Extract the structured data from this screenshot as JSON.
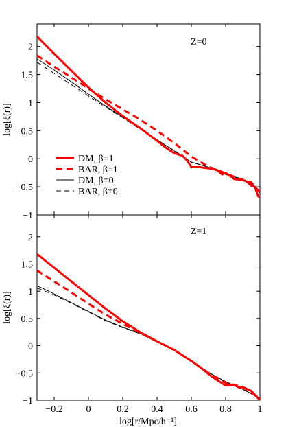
{
  "chart_data": [
    {
      "type": "line",
      "panel_label": "Z=0",
      "xlabel": "",
      "ylabel": "log[ξ(r)]",
      "xlim": [
        -0.3,
        1.0
      ],
      "ylim": [
        -1,
        2.4
      ],
      "yticks": [
        -1,
        -0.5,
        0,
        0.5,
        1,
        1.5,
        2
      ],
      "ytick_labels": [
        "−1",
        "−0.5",
        "0",
        "0.5",
        "1",
        "1.5",
        "2"
      ],
      "legend_position": "lower-left",
      "series": [
        {
          "name": "DM, β=1",
          "color": "#ff0000",
          "style": "solid-thick",
          "points": [
            [
              -0.3,
              2.18
            ],
            [
              -0.2,
              1.87
            ],
            [
              -0.1,
              1.57
            ],
            [
              0,
              1.27
            ],
            [
              0.1,
              1.0
            ],
            [
              0.2,
              0.76
            ],
            [
              0.3,
              0.55
            ],
            [
              0.4,
              0.32
            ],
            [
              0.45,
              0.2
            ],
            [
              0.5,
              0.1
            ],
            [
              0.55,
              0.05
            ],
            [
              0.58,
              -0.05
            ],
            [
              0.6,
              -0.15
            ],
            [
              0.65,
              -0.15
            ],
            [
              0.7,
              -0.17
            ],
            [
              0.75,
              -0.2
            ],
            [
              0.78,
              -0.28
            ],
            [
              0.8,
              -0.25
            ],
            [
              0.85,
              -0.36
            ],
            [
              0.9,
              -0.38
            ],
            [
              0.92,
              -0.4
            ],
            [
              0.95,
              -0.48
            ],
            [
              0.97,
              -0.5
            ],
            [
              0.98,
              -0.58
            ],
            [
              0.99,
              -0.67
            ],
            [
              1.0,
              -0.68
            ]
          ]
        },
        {
          "name": "BAR, β=1",
          "color": "#ff0000",
          "style": "dashed-thick",
          "points": [
            [
              -0.3,
              1.84
            ],
            [
              -0.2,
              1.64
            ],
            [
              -0.1,
              1.45
            ],
            [
              0,
              1.25
            ],
            [
              0.1,
              1.06
            ],
            [
              0.2,
              0.88
            ],
            [
              0.3,
              0.7
            ],
            [
              0.4,
              0.5
            ],
            [
              0.5,
              0.28
            ],
            [
              0.6,
              0.04
            ],
            [
              0.7,
              -0.14
            ],
            [
              0.8,
              -0.26
            ],
            [
              0.9,
              -0.38
            ],
            [
              0.95,
              -0.42
            ],
            [
              1.0,
              -0.6
            ]
          ]
        },
        {
          "name": "DM, β=0",
          "color": "#000000",
          "style": "solid-thin",
          "points": [
            [
              -0.3,
              1.78
            ],
            [
              -0.2,
              1.58
            ],
            [
              -0.1,
              1.37
            ],
            [
              0,
              1.15
            ],
            [
              0.1,
              0.94
            ],
            [
              0.2,
              0.74
            ],
            [
              0.3,
              0.54
            ],
            [
              0.4,
              0.34
            ],
            [
              0.5,
              0.14
            ],
            [
              0.6,
              -0.06
            ],
            [
              0.7,
              -0.15
            ],
            [
              0.8,
              -0.28
            ],
            [
              0.9,
              -0.36
            ],
            [
              0.95,
              -0.45
            ],
            [
              1.0,
              -0.58
            ]
          ]
        },
        {
          "name": "BAR, β=0",
          "color": "#000000",
          "style": "dashed-thin",
          "points": [
            [
              -0.3,
              1.72
            ],
            [
              -0.2,
              1.52
            ],
            [
              -0.1,
              1.32
            ],
            [
              0,
              1.12
            ],
            [
              0.1,
              0.92
            ],
            [
              0.2,
              0.73
            ],
            [
              0.3,
              0.53
            ],
            [
              0.4,
              0.33
            ],
            [
              0.5,
              0.15
            ],
            [
              0.6,
              -0.06
            ],
            [
              0.7,
              -0.15
            ],
            [
              0.8,
              -0.28
            ],
            [
              0.9,
              -0.37
            ],
            [
              0.95,
              -0.44
            ],
            [
              1.0,
              -0.58
            ]
          ]
        }
      ]
    },
    {
      "type": "line",
      "panel_label": "Z=1",
      "xlabel": "log[r/Mpc/h⁻¹]",
      "ylabel": "log[ξ(r)]",
      "xlim": [
        -0.3,
        1.0
      ],
      "ylim": [
        -1,
        2.4
      ],
      "xticks": [
        -0.2,
        0,
        0.2,
        0.4,
        0.6,
        0.8,
        1
      ],
      "xtick_labels": [
        "−0.2",
        "0",
        "0.2",
        "0.4",
        "0.6",
        "0.8",
        "1"
      ],
      "yticks": [
        -1,
        -0.5,
        0,
        0.5,
        1,
        1.5,
        2
      ],
      "ytick_labels": [
        "−1",
        "−0.5",
        "0",
        "0.5",
        "1",
        "1.5",
        "2"
      ],
      "series": [
        {
          "name": "DM, β=1",
          "color": "#ff0000",
          "style": "solid-thick",
          "points": [
            [
              -0.3,
              1.68
            ],
            [
              -0.2,
              1.43
            ],
            [
              -0.1,
              1.18
            ],
            [
              0,
              0.93
            ],
            [
              0.1,
              0.68
            ],
            [
              0.2,
              0.45
            ],
            [
              0.3,
              0.25
            ],
            [
              0.4,
              0.08
            ],
            [
              0.5,
              -0.08
            ],
            [
              0.6,
              -0.28
            ],
            [
              0.65,
              -0.39
            ],
            [
              0.7,
              -0.52
            ],
            [
              0.75,
              -0.63
            ],
            [
              0.8,
              -0.73
            ],
            [
              0.85,
              -0.72
            ],
            [
              0.88,
              -0.77
            ],
            [
              0.9,
              -0.76
            ],
            [
              0.95,
              -0.83
            ],
            [
              1.0,
              -1.0
            ]
          ]
        },
        {
          "name": "BAR, β=1",
          "color": "#ff0000",
          "style": "dashed-thick",
          "points": [
            [
              -0.3,
              1.38
            ],
            [
              -0.2,
              1.18
            ],
            [
              -0.1,
              0.98
            ],
            [
              0,
              0.77
            ],
            [
              0.1,
              0.57
            ],
            [
              0.2,
              0.4
            ],
            [
              0.3,
              0.24
            ],
            [
              0.4,
              0.08
            ],
            [
              0.5,
              -0.08
            ],
            [
              0.6,
              -0.28
            ],
            [
              0.7,
              -0.5
            ],
            [
              0.8,
              -0.68
            ],
            [
              0.85,
              -0.72
            ],
            [
              0.9,
              -0.76
            ],
            [
              1.0,
              -0.97
            ]
          ]
        },
        {
          "name": "DM, β=0",
          "color": "#000000",
          "style": "solid-thin",
          "points": [
            [
              -0.3,
              1.1
            ],
            [
              -0.2,
              0.95
            ],
            [
              -0.1,
              0.79
            ],
            [
              0,
              0.63
            ],
            [
              0.1,
              0.47
            ],
            [
              0.2,
              0.34
            ],
            [
              0.3,
              0.23
            ],
            [
              0.4,
              0.08
            ],
            [
              0.5,
              -0.08
            ],
            [
              0.6,
              -0.27
            ],
            [
              0.7,
              -0.49
            ],
            [
              0.8,
              -0.66
            ],
            [
              0.9,
              -0.8
            ],
            [
              1.0,
              -0.96
            ]
          ]
        },
        {
          "name": "BAR, β=0",
          "color": "#000000",
          "style": "dashed-thin",
          "points": [
            [
              -0.3,
              1.06
            ],
            [
              -0.2,
              0.93
            ],
            [
              -0.1,
              0.78
            ],
            [
              0,
              0.62
            ],
            [
              0.1,
              0.46
            ],
            [
              0.2,
              0.33
            ],
            [
              0.3,
              0.22
            ],
            [
              0.4,
              0.07
            ],
            [
              0.5,
              -0.09
            ],
            [
              0.6,
              -0.28
            ],
            [
              0.7,
              -0.5
            ],
            [
              0.8,
              -0.67
            ],
            [
              0.9,
              -0.8
            ],
            [
              1.0,
              -0.97
            ]
          ]
        }
      ]
    }
  ]
}
